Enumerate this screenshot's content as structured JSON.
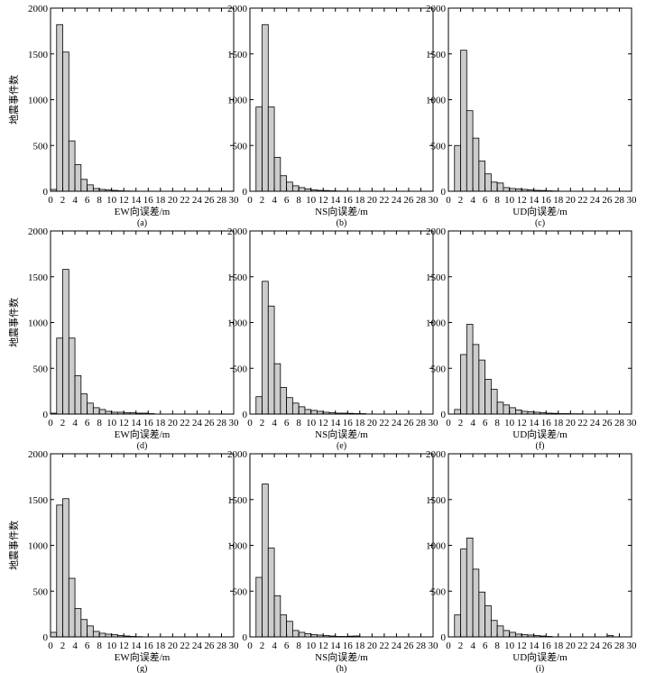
{
  "chart_data": [
    {
      "type": "bar",
      "panel": "(a)",
      "xlabel": "EW向误差/m",
      "ylabel": "地震事件数",
      "xlim": [
        0,
        30
      ],
      "ylim": [
        0,
        2000
      ],
      "x_ticks": [
        0,
        2,
        4,
        6,
        8,
        10,
        12,
        14,
        16,
        18,
        20,
        22,
        24,
        26,
        28,
        30
      ],
      "y_ticks": [
        0,
        500,
        1000,
        1500,
        2000
      ],
      "bin_width": 1,
      "series": [
        {
          "values": [
            20,
            1820,
            1520,
            550,
            290,
            130,
            70,
            30,
            20,
            15,
            10,
            5,
            3,
            2,
            1,
            1,
            0,
            0,
            0,
            0,
            0,
            0,
            0,
            0,
            0,
            0,
            0,
            0,
            0,
            0
          ]
        }
      ]
    },
    {
      "type": "bar",
      "panel": "(b)",
      "xlabel": "NS向误差/m",
      "ylabel": "",
      "xlim": [
        0,
        30
      ],
      "ylim": [
        0,
        2000
      ],
      "x_ticks": [
        0,
        2,
        4,
        6,
        8,
        10,
        12,
        14,
        16,
        18,
        20,
        22,
        24,
        26,
        28,
        30
      ],
      "y_ticks": [
        0,
        500,
        1000,
        1500,
        2000
      ],
      "bin_width": 1,
      "series": [
        {
          "values": [
            0,
            920,
            1820,
            920,
            370,
            170,
            100,
            60,
            40,
            25,
            15,
            10,
            8,
            5,
            3,
            2,
            1,
            1,
            0,
            0,
            0,
            0,
            0,
            0,
            0,
            0,
            0,
            0,
            0,
            0
          ]
        }
      ]
    },
    {
      "type": "bar",
      "panel": "(c)",
      "xlabel": "UD向误差/m",
      "ylabel": "",
      "xlim": [
        0,
        30
      ],
      "ylim": [
        0,
        2000
      ],
      "x_ticks": [
        0,
        2,
        4,
        6,
        8,
        10,
        12,
        14,
        16,
        18,
        20,
        22,
        24,
        26,
        28,
        30
      ],
      "y_ticks": [
        0,
        500,
        1000,
        1500,
        2000
      ],
      "bin_width": 1,
      "series": [
        {
          "values": [
            0,
            500,
            1540,
            880,
            580,
            330,
            190,
            100,
            90,
            40,
            30,
            25,
            20,
            15,
            10,
            8,
            5,
            3,
            0,
            0,
            0,
            0,
            0,
            0,
            0,
            0,
            0,
            0,
            0,
            0
          ]
        }
      ]
    },
    {
      "type": "bar",
      "panel": "(d)",
      "xlabel": "EW向误差/m",
      "ylabel": "地震事件数",
      "xlim": [
        0,
        30
      ],
      "ylim": [
        0,
        2000
      ],
      "x_ticks": [
        0,
        2,
        4,
        6,
        8,
        10,
        12,
        14,
        16,
        18,
        20,
        22,
        24,
        26,
        28,
        30
      ],
      "y_ticks": [
        0,
        500,
        1000,
        1500,
        2000
      ],
      "bin_width": 1,
      "series": [
        {
          "values": [
            10,
            830,
            1580,
            830,
            420,
            220,
            120,
            70,
            50,
            30,
            20,
            20,
            15,
            15,
            10,
            10,
            5,
            0,
            0,
            0,
            0,
            0,
            0,
            0,
            0,
            0,
            0,
            0,
            0,
            0
          ]
        }
      ]
    },
    {
      "type": "bar",
      "panel": "(e)",
      "xlabel": "NS向误差/m",
      "ylabel": "",
      "xlim": [
        0,
        30
      ],
      "ylim": [
        0,
        2000
      ],
      "x_ticks": [
        0,
        2,
        4,
        6,
        8,
        10,
        12,
        14,
        16,
        18,
        20,
        22,
        24,
        26,
        28,
        30
      ],
      "y_ticks": [
        0,
        500,
        1000,
        1500,
        2000
      ],
      "bin_width": 1,
      "series": [
        {
          "values": [
            0,
            190,
            1450,
            1180,
            550,
            290,
            180,
            120,
            80,
            50,
            40,
            30,
            20,
            15,
            10,
            10,
            8,
            5,
            5,
            0,
            0,
            0,
            0,
            0,
            0,
            0,
            0,
            0,
            0,
            0
          ]
        }
      ]
    },
    {
      "type": "bar",
      "panel": "(f)",
      "xlabel": "UD向误差/m",
      "ylabel": "",
      "xlim": [
        0,
        30
      ],
      "ylim": [
        0,
        2000
      ],
      "x_ticks": [
        0,
        2,
        4,
        6,
        8,
        10,
        12,
        14,
        16,
        18,
        20,
        22,
        24,
        26,
        28,
        30
      ],
      "y_ticks": [
        0,
        500,
        1000,
        1500,
        2000
      ],
      "bin_width": 1,
      "series": [
        {
          "values": [
            0,
            50,
            650,
            980,
            760,
            590,
            380,
            270,
            130,
            100,
            70,
            45,
            30,
            25,
            20,
            15,
            10,
            8,
            5,
            5,
            3,
            3,
            0,
            0,
            0,
            0,
            0,
            0,
            0,
            0
          ]
        }
      ]
    },
    {
      "type": "bar",
      "panel": "(g)",
      "xlabel": "EW向误差/m",
      "ylabel": "地震事件数",
      "xlim": [
        0,
        30
      ],
      "ylim": [
        0,
        2000
      ],
      "x_ticks": [
        0,
        2,
        4,
        6,
        8,
        10,
        12,
        14,
        16,
        18,
        20,
        22,
        24,
        26,
        28,
        30
      ],
      "y_ticks": [
        0,
        500,
        1000,
        1500,
        2000
      ],
      "bin_width": 1,
      "series": [
        {
          "values": [
            50,
            1440,
            1510,
            640,
            310,
            190,
            120,
            60,
            40,
            30,
            25,
            15,
            10,
            5,
            3,
            0,
            0,
            0,
            0,
            0,
            0,
            0,
            0,
            0,
            0,
            0,
            0,
            0,
            0,
            0
          ]
        }
      ]
    },
    {
      "type": "bar",
      "panel": "(h)",
      "xlabel": "NS向误差/m",
      "ylabel": "",
      "xlim": [
        0,
        30
      ],
      "ylim": [
        0,
        2000
      ],
      "x_ticks": [
        0,
        2,
        4,
        6,
        8,
        10,
        12,
        14,
        16,
        18,
        20,
        22,
        24,
        26,
        28,
        30
      ],
      "y_ticks": [
        0,
        500,
        1000,
        1500,
        2000
      ],
      "bin_width": 1,
      "series": [
        {
          "values": [
            0,
            650,
            1670,
            970,
            450,
            240,
            170,
            70,
            50,
            35,
            25,
            20,
            15,
            10,
            5,
            5,
            8,
            10,
            0,
            0,
            0,
            0,
            0,
            0,
            0,
            0,
            0,
            0,
            0,
            0
          ]
        }
      ]
    },
    {
      "type": "bar",
      "panel": "(i)",
      "xlabel": "UD向误差/m",
      "ylabel": "",
      "xlim": [
        0,
        30
      ],
      "ylim": [
        0,
        2000
      ],
      "x_ticks": [
        0,
        2,
        4,
        6,
        8,
        10,
        12,
        14,
        16,
        18,
        20,
        22,
        24,
        26,
        28,
        30
      ],
      "y_ticks": [
        0,
        500,
        1000,
        1500,
        2000
      ],
      "bin_width": 1,
      "series": [
        {
          "values": [
            0,
            240,
            960,
            1080,
            740,
            490,
            340,
            180,
            120,
            70,
            50,
            30,
            25,
            20,
            15,
            10,
            5,
            0,
            0,
            0,
            0,
            0,
            0,
            0,
            0,
            0,
            15,
            0,
            0,
            0
          ]
        }
      ]
    }
  ],
  "colors": {
    "bar_fill": "#cccccc",
    "bar_stroke": "#000000",
    "axis": "#000000"
  }
}
